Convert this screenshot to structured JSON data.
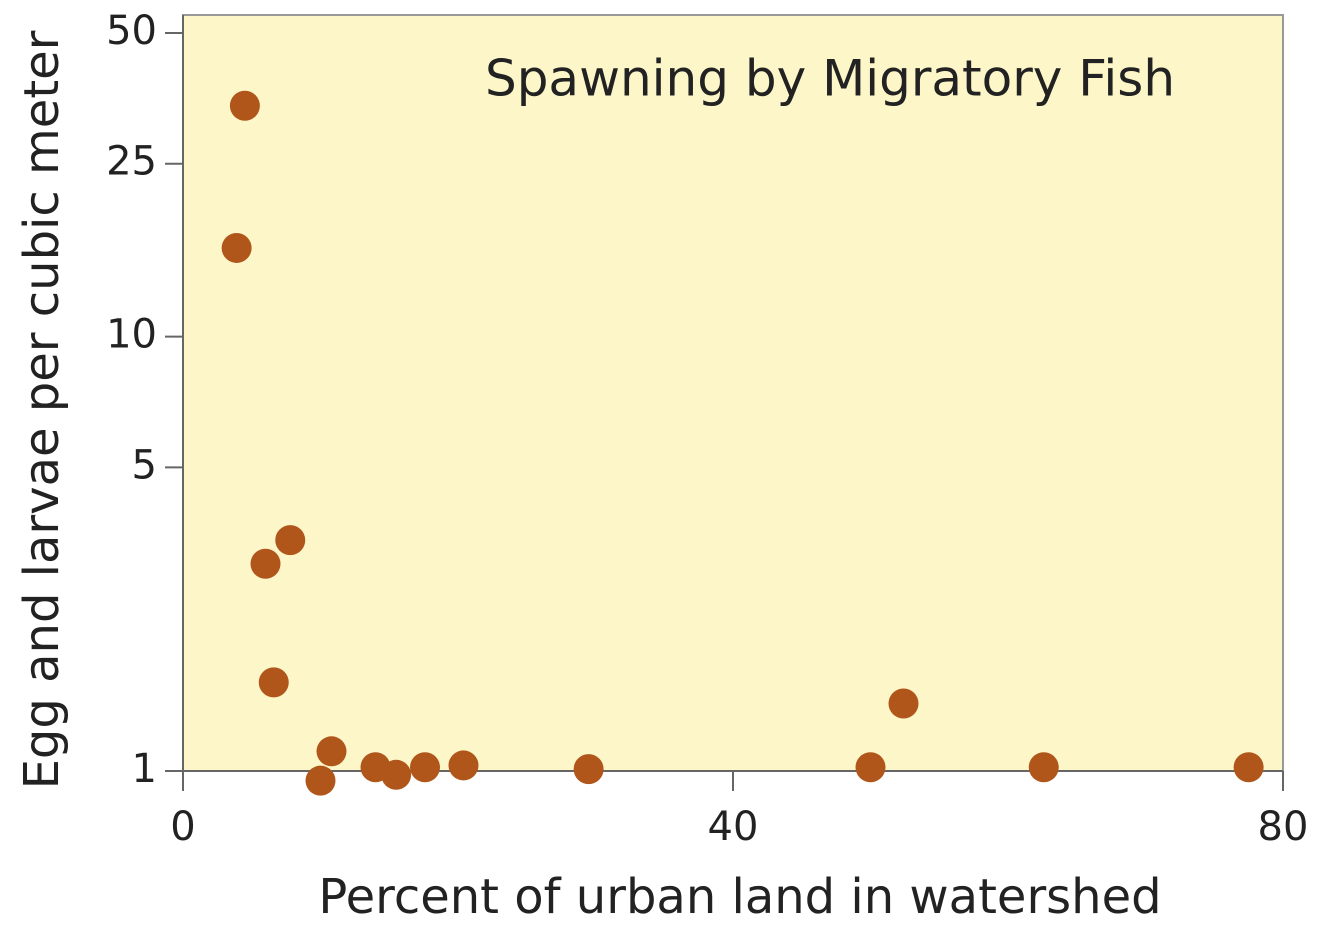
{
  "chart_data": {
    "type": "scatter",
    "title": "Spawning by Migratory Fish",
    "x_label": "Percent of urban land in watershed",
    "y_label": "Egg and larvae per cubic meter",
    "x": [
      4.5,
      3.9,
      7.8,
      6.0,
      6.6,
      10.8,
      10.0,
      14.0,
      15.5,
      17.6,
      20.4,
      29.5,
      50.0,
      52.4,
      62.6,
      77.5
    ],
    "values": [
      34,
      16,
      3.4,
      3.0,
      1.6,
      1.11,
      0.95,
      1.02,
      0.98,
      1.02,
      1.03,
      1.01,
      1.02,
      1.43,
      1.02,
      1.02
    ],
    "color": "#b0561a",
    "background": "#fdf6c9",
    "xlim": [
      0,
      80
    ],
    "xticks": [
      0,
      40,
      80
    ],
    "ylim": [
      1,
      55
    ],
    "yticks": [
      1,
      5,
      10,
      25,
      50
    ],
    "y_scale": "log"
  }
}
